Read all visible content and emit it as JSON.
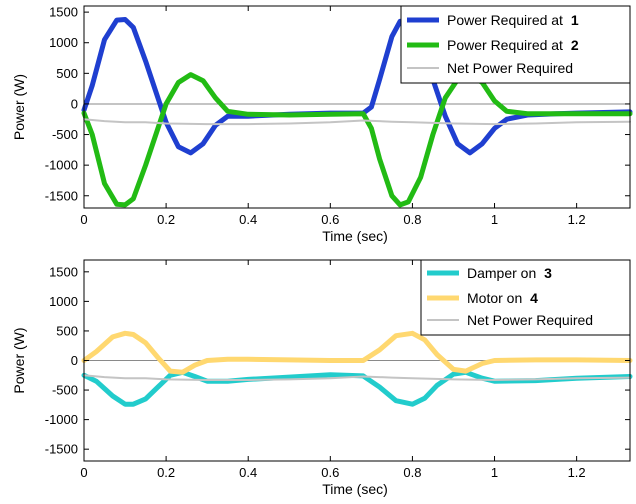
{
  "chart_data": [
    {
      "type": "line",
      "title": "",
      "xlabel": "Time (sec)",
      "ylabel": "Power (W)",
      "xlim": [
        0,
        1.33
      ],
      "ylim": [
        -1700,
        1600
      ],
      "xticks": [
        "0",
        "0.2",
        "0.4",
        "0.6",
        "0.8",
        "1",
        "1.2"
      ],
      "xtick_values": [
        0,
        0.2,
        0.4,
        0.6,
        0.8,
        1.0,
        1.2
      ],
      "yticks": [
        "-1500",
        "-1000",
        "-500",
        "0",
        "500",
        "1000",
        "1500"
      ],
      "ytick_values": [
        -1500,
        -1000,
        -500,
        0,
        500,
        1000,
        1500
      ],
      "zero_line": true,
      "grid": false,
      "legend_position": "top-right",
      "series": [
        {
          "name": "Power Required at",
          "label_num": "1",
          "color": "#1f3fd0",
          "width": 5,
          "x": [
            0,
            0.02,
            0.05,
            0.08,
            0.1,
            0.12,
            0.15,
            0.18,
            0.2,
            0.23,
            0.26,
            0.29,
            0.32,
            0.35,
            0.4,
            0.5,
            0.6,
            0.68,
            0.7,
            0.72,
            0.75,
            0.77,
            0.79,
            0.82,
            0.85,
            0.88,
            0.91,
            0.94,
            0.97,
            1.0,
            1.03,
            1.08,
            1.15,
            1.2,
            1.33
          ],
          "y": [
            -100,
            300,
            1050,
            1370,
            1380,
            1250,
            700,
            100,
            -300,
            -700,
            -800,
            -650,
            -350,
            -200,
            -200,
            -170,
            -150,
            -150,
            -50,
            400,
            1100,
            1350,
            1330,
            1000,
            400,
            -200,
            -650,
            -800,
            -650,
            -400,
            -250,
            -180,
            -160,
            -150,
            -130
          ]
        },
        {
          "name": "Power Required at",
          "label_num": "2",
          "color": "#22bb14",
          "width": 5,
          "x": [
            0,
            0.02,
            0.05,
            0.08,
            0.1,
            0.12,
            0.15,
            0.18,
            0.2,
            0.23,
            0.26,
            0.29,
            0.32,
            0.35,
            0.4,
            0.5,
            0.6,
            0.68,
            0.7,
            0.72,
            0.75,
            0.77,
            0.79,
            0.82,
            0.85,
            0.88,
            0.91,
            0.94,
            0.97,
            1.0,
            1.03,
            1.08,
            1.15,
            1.2,
            1.33
          ],
          "y": [
            -150,
            -500,
            -1300,
            -1640,
            -1650,
            -1550,
            -1000,
            -400,
            0,
            350,
            480,
            380,
            100,
            -120,
            -170,
            -180,
            -170,
            -160,
            -400,
            -900,
            -1500,
            -1650,
            -1600,
            -1200,
            -500,
            100,
            400,
            470,
            350,
            50,
            -120,
            -160,
            -160,
            -160,
            -160
          ]
        },
        {
          "name": "Net Power Required",
          "color": "#c4c4c4",
          "width": 2,
          "x": [
            0,
            0.05,
            0.1,
            0.15,
            0.2,
            0.3,
            0.4,
            0.5,
            0.6,
            0.68,
            0.75,
            0.8,
            0.9,
            1.0,
            1.1,
            1.2,
            1.33
          ],
          "y": [
            -250,
            -280,
            -300,
            -300,
            -320,
            -330,
            -330,
            -320,
            -300,
            -270,
            -290,
            -300,
            -320,
            -330,
            -320,
            -300,
            -290
          ]
        }
      ]
    },
    {
      "type": "line",
      "title": "",
      "xlabel": "Time (sec)",
      "ylabel": "Power (W)",
      "xlim": [
        0,
        1.33
      ],
      "ylim": [
        -1700,
        1700
      ],
      "xticks": [
        "0",
        "0.2",
        "0.4",
        "0.6",
        "0.8",
        "1",
        "1.2"
      ],
      "xtick_values": [
        0,
        0.2,
        0.4,
        0.6,
        0.8,
        1.0,
        1.2
      ],
      "yticks": [
        "-1500",
        "-1000",
        "-500",
        "0",
        "500",
        "1000",
        "1500"
      ],
      "ytick_values": [
        -1500,
        -1000,
        -500,
        0,
        500,
        1000,
        1500
      ],
      "zero_line": true,
      "grid": false,
      "legend_position": "top-right",
      "series": [
        {
          "name": "Damper on",
          "label_num": "3",
          "color": "#22cccc",
          "width": 5,
          "x": [
            0,
            0.03,
            0.07,
            0.1,
            0.12,
            0.15,
            0.18,
            0.21,
            0.24,
            0.27,
            0.3,
            0.35,
            0.4,
            0.5,
            0.6,
            0.68,
            0.72,
            0.76,
            0.8,
            0.83,
            0.86,
            0.9,
            0.93,
            0.97,
            1.0,
            1.1,
            1.2,
            1.33
          ],
          "y": [
            -250,
            -350,
            -600,
            -740,
            -740,
            -650,
            -450,
            -250,
            -200,
            -270,
            -350,
            -350,
            -320,
            -280,
            -240,
            -260,
            -450,
            -680,
            -740,
            -640,
            -420,
            -230,
            -200,
            -300,
            -350,
            -340,
            -300,
            -270
          ]
        },
        {
          "name": "Motor on",
          "label_num": "4",
          "color": "#ffd870",
          "width": 5,
          "x": [
            0,
            0.03,
            0.07,
            0.1,
            0.12,
            0.15,
            0.18,
            0.21,
            0.24,
            0.27,
            0.3,
            0.35,
            0.4,
            0.5,
            0.6,
            0.68,
            0.72,
            0.76,
            0.8,
            0.83,
            0.86,
            0.9,
            0.93,
            0.97,
            1.0,
            1.1,
            1.2,
            1.33
          ],
          "y": [
            0,
            150,
            400,
            460,
            440,
            300,
            50,
            -180,
            -200,
            -80,
            0,
            20,
            20,
            10,
            0,
            0,
            180,
            420,
            460,
            350,
            100,
            -150,
            -180,
            -50,
            0,
            10,
            10,
            0
          ]
        },
        {
          "name": "Net Power Required",
          "color": "#c4c4c4",
          "width": 2,
          "x": [
            0,
            0.05,
            0.1,
            0.15,
            0.2,
            0.3,
            0.4,
            0.5,
            0.6,
            0.68,
            0.75,
            0.8,
            0.9,
            1.0,
            1.1,
            1.2,
            1.33
          ],
          "y": [
            -250,
            -280,
            -300,
            -300,
            -320,
            -330,
            -330,
            -320,
            -300,
            -270,
            -290,
            -300,
            -320,
            -330,
            -320,
            -300,
            -290
          ]
        }
      ]
    }
  ]
}
